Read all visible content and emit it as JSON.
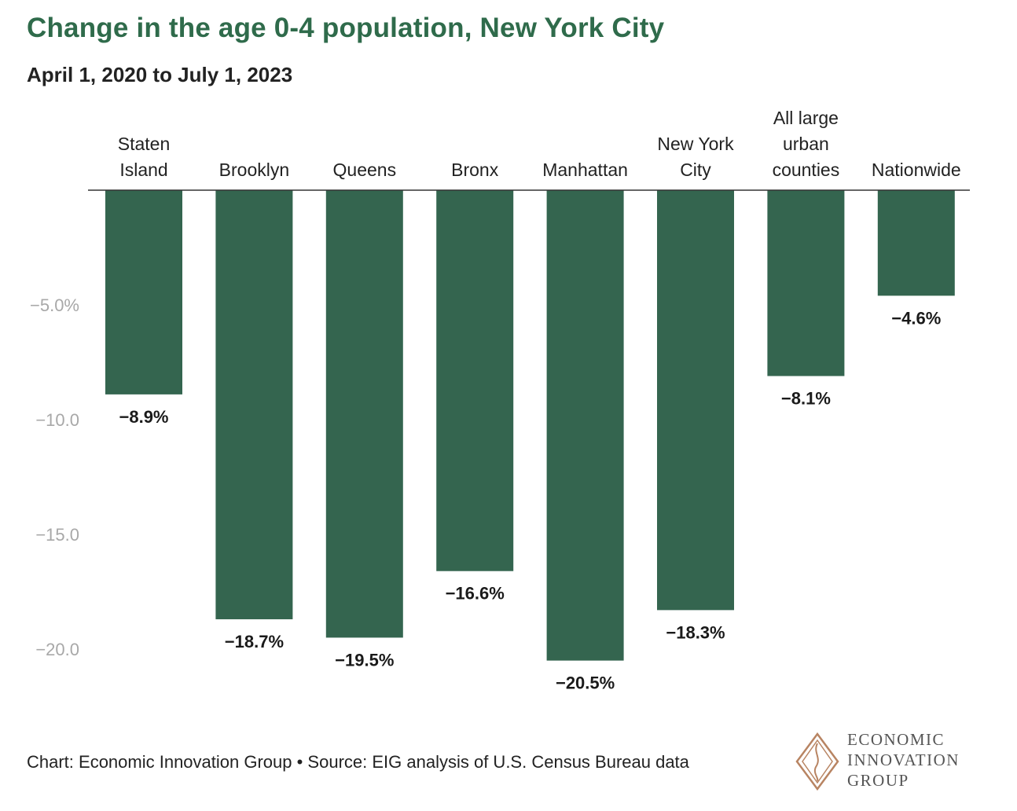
{
  "title": "Change in the age 0-4 population, New York City",
  "subtitle": "April 1, 2020 to July 1, 2023",
  "footer": "Chart: Economic Innovation Group • Source: EIG analysis of U.S. Census Bureau data",
  "logo": {
    "lines": [
      "ECONOMIC",
      "INNOVATION",
      "GROUP"
    ]
  },
  "colors": {
    "bar": "#34654f",
    "title": "#2f6b4b",
    "tick": "#a8a8a8",
    "label": "#1a1a1a",
    "logo": "#b88462"
  },
  "chart_data": {
    "type": "bar",
    "title": "Change in the age 0-4 population, New York City",
    "subtitle": "April 1, 2020 to July 1, 2023",
    "categories": [
      [
        "Staten",
        "Island"
      ],
      [
        "Brooklyn"
      ],
      [
        "Queens"
      ],
      [
        "Bronx"
      ],
      [
        "Manhattan"
      ],
      [
        "New York",
        "City"
      ],
      [
        "All large",
        "urban",
        "counties"
      ],
      [
        "Nationwide"
      ]
    ],
    "values": [
      -8.9,
      -18.7,
      -19.5,
      -16.6,
      -20.5,
      -18.3,
      -8.1,
      -4.6
    ],
    "value_labels": [
      "−8.9%",
      "−18.7%",
      "−19.5%",
      "−16.6%",
      "−20.5%",
      "−18.3%",
      "−8.1%",
      "−4.6%"
    ],
    "yticks": [
      -5,
      -10,
      -15,
      -20
    ],
    "ytick_labels": [
      "−5.0%",
      "−10.0",
      "−15.0",
      "−20.0"
    ],
    "ylim": [
      -21,
      0
    ],
    "xlabel": "",
    "ylabel": "",
    "grid": false,
    "legend": "none"
  }
}
